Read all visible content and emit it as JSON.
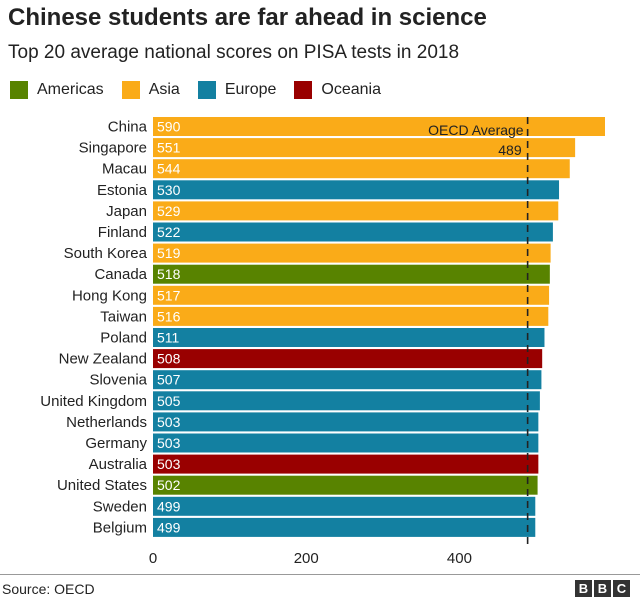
{
  "title": "Chinese students are far ahead in science",
  "subtitle": "Top 20 average national scores on PISA tests in 2018",
  "legend": [
    {
      "label": "Americas",
      "color": "#588300"
    },
    {
      "label": "Asia",
      "color": "#FAAB18"
    },
    {
      "label": "Europe",
      "color": "#1380A1"
    },
    {
      "label": "Oceania",
      "color": "#990000"
    }
  ],
  "chart_data": {
    "type": "bar",
    "orientation": "horizontal",
    "title": "Chinese students are far ahead in science",
    "subtitle": "Top 20 average national scores on PISA tests in 2018",
    "categories": [
      "China",
      "Singapore",
      "Macau",
      "Estonia",
      "Japan",
      "Finland",
      "South Korea",
      "Canada",
      "Hong Kong",
      "Taiwan",
      "Poland",
      "New Zealand",
      "Slovenia",
      "United Kingdom",
      "Netherlands",
      "Germany",
      "Australia",
      "United States",
      "Sweden",
      "Belgium"
    ],
    "values": [
      590,
      551,
      544,
      530,
      529,
      522,
      519,
      518,
      517,
      516,
      511,
      508,
      507,
      505,
      503,
      503,
      503,
      502,
      499,
      499
    ],
    "regions": [
      "Asia",
      "Asia",
      "Asia",
      "Europe",
      "Asia",
      "Europe",
      "Asia",
      "Americas",
      "Asia",
      "Asia",
      "Europe",
      "Oceania",
      "Europe",
      "Europe",
      "Europe",
      "Europe",
      "Oceania",
      "Americas",
      "Europe",
      "Europe"
    ],
    "colors": {
      "Americas": "#588300",
      "Asia": "#FAAB18",
      "Europe": "#1380A1",
      "Oceania": "#990000"
    },
    "xlim": [
      0,
      590
    ],
    "xticks": [
      0,
      200,
      400
    ],
    "reference_line": {
      "label": "OECD Average",
      "value": 489
    },
    "grid": false,
    "legend_position": "top-left"
  },
  "footer": {
    "source": "Source: OECD",
    "logo": [
      "B",
      "B",
      "C"
    ]
  }
}
